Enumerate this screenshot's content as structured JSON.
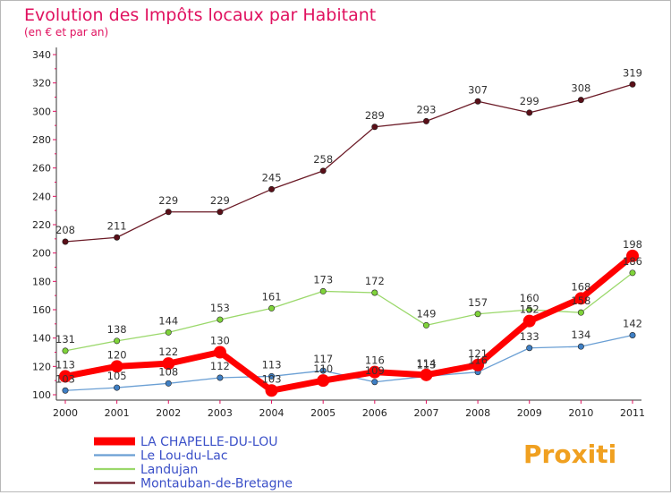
{
  "chart_data": {
    "type": "line",
    "title": "Evolution des Impôts locaux par Habitant",
    "subtitle": "(en € et par an)",
    "xlabel": "",
    "ylabel": "",
    "ylim": [
      100,
      340
    ],
    "ytick_step": 20,
    "grid": false,
    "legend_position": "bottom-left",
    "categories": [
      "2000",
      "2001",
      "2002",
      "2003",
      "2004",
      "2005",
      "2006",
      "2007",
      "2008",
      "2009",
      "2010",
      "2011"
    ],
    "series": [
      {
        "name": "Montauban-de-Bretagne",
        "color": "#6b1a26",
        "width": 1.3,
        "marker": "#5a0f18",
        "show_labels": true,
        "values": [
          208,
          211,
          229,
          229,
          245,
          258,
          289,
          293,
          307,
          299,
          308,
          319
        ]
      },
      {
        "name": "Landujan",
        "color": "#9ad86a",
        "width": 1.3,
        "marker": "#7fd33a",
        "show_labels": true,
        "values": [
          131,
          138,
          144,
          153,
          161,
          173,
          172,
          149,
          157,
          160,
          158,
          186
        ]
      },
      {
        "name": "Le Lou-du-Lac",
        "color": "#6a9fd4",
        "width": 1.3,
        "marker": "#3f7fc4",
        "show_labels": true,
        "values": [
          103,
          105,
          108,
          112,
          113,
          117,
          109,
          113,
          116,
          133,
          134,
          142
        ]
      },
      {
        "name": "LA CHAPELLE-DU-LOU",
        "color": "#ff0000",
        "width": 7,
        "marker": "#ff0000",
        "show_labels": true,
        "values": [
          113,
          120,
          122,
          130,
          103,
          110,
          116,
          114,
          121,
          152,
          168,
          198
        ]
      }
    ],
    "legend_order": [
      "LA CHAPELLE-DU-LOU",
      "Le Lou-du-Lac",
      "Landujan",
      "Montauban-de-Bretagne"
    ]
  },
  "branding": {
    "logo_text": "Proxiti"
  }
}
